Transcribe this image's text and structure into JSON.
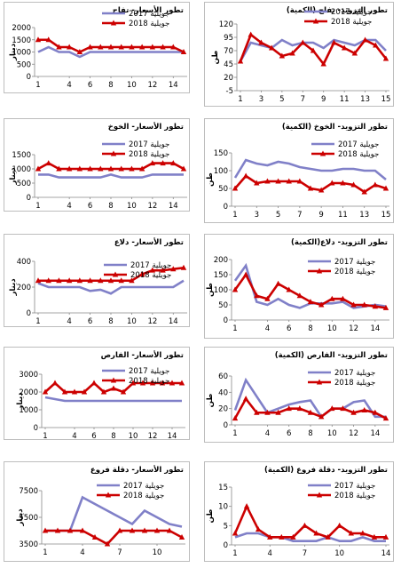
{
  "colors": {
    "s2017": "#8080c8",
    "s2018": "#cc0000"
  },
  "chart_data": [
    {
      "type": "line",
      "title": "تطور الأسعار- تفاح",
      "ylabel": "دينار",
      "ylim": [
        0,
        2000
      ],
      "yticks": [
        0,
        500,
        1000,
        1500,
        2000
      ],
      "x": [
        1,
        2,
        3,
        4,
        5,
        6,
        7,
        8,
        9,
        10,
        11,
        12,
        13,
        14,
        15
      ],
      "xticks": [
        1,
        4,
        6,
        8,
        10,
        12,
        14
      ],
      "series": [
        {
          "name": "جويلية 2017",
          "values": [
            1000,
            1200,
            1000,
            1000,
            800,
            1000,
            1000,
            1000,
            1000,
            1000,
            1000,
            1000,
            1000,
            1000,
            1000
          ]
        },
        {
          "name": "جويلية 2018",
          "values": [
            1500,
            1500,
            1200,
            1200,
            1000,
            1200,
            1200,
            1200,
            1200,
            1200,
            1200,
            1200,
            1200,
            1200,
            1000
          ]
        }
      ]
    },
    {
      "type": "line",
      "title": "تطور التزويد- تفاح (الكمية)",
      "ylabel": "طن",
      "ylim": [
        -5,
        120
      ],
      "yticks": [
        -5,
        20,
        45,
        70,
        95,
        120
      ],
      "x": [
        1,
        2,
        3,
        4,
        5,
        6,
        7,
        8,
        9,
        10,
        11,
        12,
        13,
        14,
        15
      ],
      "xticks": [
        1,
        3,
        5,
        7,
        9,
        11,
        13,
        15
      ],
      "series": [
        {
          "name": "جويلية 2017",
          "values": [
            50,
            85,
            80,
            75,
            90,
            80,
            85,
            85,
            75,
            90,
            85,
            80,
            90,
            90,
            70
          ]
        },
        {
          "name": "جويلية 2018",
          "values": [
            50,
            100,
            85,
            75,
            60,
            65,
            85,
            70,
            45,
            85,
            75,
            65,
            90,
            80,
            55
          ]
        }
      ]
    },
    {
      "type": "line",
      "title": "تطور الأسعار- الخوخ",
      "ylabel": "دينار",
      "ylim": [
        0,
        1500
      ],
      "yticks": [
        0,
        500,
        1000,
        1500
      ],
      "x": [
        1,
        2,
        3,
        4,
        5,
        6,
        7,
        8,
        9,
        10,
        11,
        12,
        13,
        14,
        15
      ],
      "xticks": [
        1,
        4,
        6,
        8,
        10,
        12,
        14
      ],
      "series": [
        {
          "name": "جويلية 2017",
          "values": [
            800,
            800,
            700,
            700,
            700,
            700,
            700,
            800,
            700,
            700,
            700,
            800,
            800,
            800,
            800
          ]
        },
        {
          "name": "جويلية 2018",
          "values": [
            1000,
            1200,
            1000,
            1000,
            1000,
            1000,
            1000,
            1000,
            1000,
            1000,
            1000,
            1200,
            1200,
            1200,
            1000
          ]
        }
      ]
    },
    {
      "type": "line",
      "title": "تطور التزويد- الخوخ (الكمية)",
      "ylabel": "طن",
      "ylim": [
        0,
        150
      ],
      "yticks": [
        0,
        50,
        100,
        150
      ],
      "x": [
        1,
        2,
        3,
        4,
        5,
        6,
        7,
        8,
        9,
        10,
        11,
        12,
        13,
        14,
        15
      ],
      "xticks": [
        1,
        3,
        5,
        7,
        9,
        11,
        13,
        15
      ],
      "series": [
        {
          "name": "جويلية 2017",
          "values": [
            80,
            130,
            120,
            115,
            125,
            120,
            110,
            105,
            100,
            100,
            105,
            105,
            100,
            100,
            75
          ]
        },
        {
          "name": "جويلية 2018",
          "values": [
            50,
            85,
            65,
            70,
            70,
            70,
            70,
            50,
            45,
            65,
            65,
            60,
            40,
            60,
            50
          ]
        }
      ]
    },
    {
      "type": "line",
      "title": "تطور الأسعار- دلاع",
      "ylabel": "دينار",
      "ylim": [
        0,
        400
      ],
      "yticks": [
        0,
        200,
        400
      ],
      "x": [
        1,
        2,
        3,
        4,
        5,
        6,
        7,
        8,
        9,
        10,
        11,
        12,
        13,
        14,
        15
      ],
      "xticks": [
        1,
        4,
        6,
        8,
        10,
        12,
        14
      ],
      "series": [
        {
          "name": "جويلية 2017",
          "values": [
            230,
            200,
            200,
            200,
            200,
            170,
            180,
            150,
            200,
            200,
            200,
            200,
            200,
            200,
            250
          ]
        },
        {
          "name": "جويلية 2018",
          "values": [
            250,
            250,
            250,
            250,
            250,
            250,
            250,
            250,
            250,
            250,
            300,
            330,
            330,
            340,
            350
          ]
        }
      ]
    },
    {
      "type": "line",
      "title": "تطور التزويد- دلاع(الكمية)",
      "ylabel": "طن",
      "ylim": [
        0,
        200
      ],
      "yticks": [
        0,
        50,
        100,
        150,
        200
      ],
      "x": [
        1,
        2,
        3,
        4,
        5,
        6,
        7,
        8,
        9,
        10,
        11,
        12,
        13,
        14,
        15
      ],
      "xticks": [
        1,
        4,
        6,
        8,
        10,
        12,
        14
      ],
      "series": [
        {
          "name": "جويلية 2017",
          "values": [
            130,
            180,
            60,
            50,
            70,
            50,
            40,
            55,
            55,
            55,
            60,
            40,
            45,
            50,
            45
          ]
        },
        {
          "name": "جويلية 2018",
          "values": [
            100,
            150,
            80,
            70,
            120,
            100,
            80,
            60,
            50,
            70,
            70,
            50,
            50,
            45,
            40
          ]
        }
      ]
    },
    {
      "type": "line",
      "title": "تطور الأسعار- الفارص",
      "ylabel": "دينار",
      "ylim": [
        0,
        3000
      ],
      "yticks": [
        0,
        1000,
        2000,
        3000
      ],
      "x": [
        1,
        2,
        3,
        4,
        5,
        6,
        7,
        8,
        9,
        10,
        11,
        12,
        13,
        14,
        15
      ],
      "xticks": [
        1,
        4,
        6,
        8,
        10,
        12,
        14
      ],
      "series": [
        {
          "name": "جويلية 2017",
          "values": [
            1700,
            1600,
            1500,
            1500,
            1500,
            1500,
            1500,
            1500,
            1500,
            1500,
            1500,
            1500,
            1500,
            1500,
            1500
          ]
        },
        {
          "name": "جويلية 2018",
          "values": [
            2000,
            2500,
            2000,
            2000,
            2000,
            2500,
            2000,
            2200,
            2000,
            2500,
            2500,
            2500,
            2500,
            2500,
            2500
          ]
        }
      ]
    },
    {
      "type": "line",
      "title": "تطور التزويد- الفارص (الكمية)",
      "ylabel": "طن",
      "ylim": [
        0,
        60
      ],
      "yticks": [
        0,
        20,
        40,
        60
      ],
      "x": [
        1,
        2,
        3,
        4,
        5,
        6,
        7,
        8,
        9,
        10,
        11,
        12,
        13,
        14,
        15
      ],
      "xticks": [
        1,
        4,
        6,
        8,
        10,
        12,
        14
      ],
      "series": [
        {
          "name": "جويلية 2017",
          "values": [
            18,
            55,
            35,
            15,
            20,
            25,
            28,
            30,
            10,
            20,
            20,
            28,
            30,
            10,
            10
          ]
        },
        {
          "name": "جويلية 2018",
          "values": [
            8,
            32,
            15,
            15,
            15,
            20,
            20,
            15,
            10,
            20,
            20,
            15,
            18,
            15,
            8
          ]
        }
      ]
    },
    {
      "type": "line",
      "title": "تطور الأسعار- دقلة فروع",
      "ylabel": "دينار",
      "ylim": [
        3500,
        7500
      ],
      "yticks": [
        3500,
        5500,
        7500
      ],
      "x": [
        1,
        2,
        3,
        4,
        5,
        6,
        7,
        8,
        9,
        10,
        11,
        12
      ],
      "xticks": [
        1,
        4,
        7,
        10
      ],
      "series": [
        {
          "name": "جويلية 2017",
          "values": [
            4500,
            4500,
            4500,
            7000,
            6500,
            6000,
            5500,
            5000,
            6000,
            5500,
            5000,
            4800
          ]
        },
        {
          "name": "جويلية 2018",
          "values": [
            4500,
            4500,
            4500,
            4500,
            4000,
            3500,
            4500,
            4500,
            4500,
            4500,
            4500,
            4000
          ]
        }
      ]
    },
    {
      "type": "line",
      "title": "تطور التزويد- دقلة فروع (الكمية)",
      "ylabel": "طن",
      "ylim": [
        0,
        15
      ],
      "yticks": [
        0,
        5,
        10,
        15
      ],
      "x": [
        1,
        2,
        3,
        4,
        5,
        6,
        7,
        8,
        9,
        10,
        11,
        12,
        13,
        14
      ],
      "xticks": [
        1,
        4,
        7,
        10,
        14
      ],
      "series": [
        {
          "name": "جويلية 2017",
          "values": [
            2,
            3,
            3,
            2,
            2,
            1,
            1,
            1,
            2,
            1,
            1,
            2,
            1,
            1
          ]
        },
        {
          "name": "جويلية 2018",
          "values": [
            3,
            10,
            4,
            2,
            2,
            2,
            5,
            3,
            2,
            5,
            3,
            3,
            2,
            2
          ]
        }
      ]
    }
  ]
}
